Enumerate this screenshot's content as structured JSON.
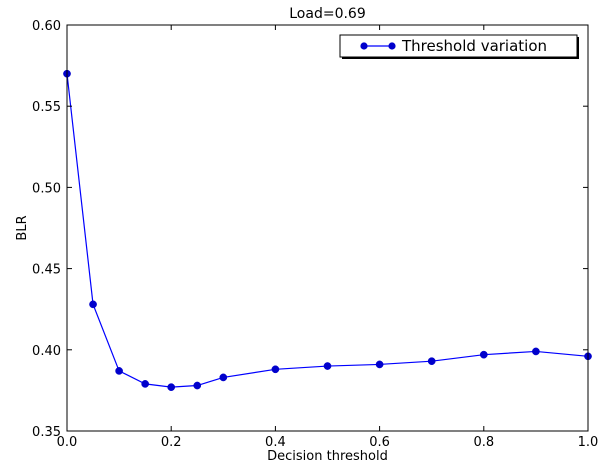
{
  "chart_data": {
    "type": "line",
    "title": "Load=0.69",
    "xlabel": "Decision threshold",
    "ylabel": "BLR",
    "xlim": [
      0.0,
      1.0
    ],
    "ylim": [
      0.35,
      0.6
    ],
    "xticks": [
      0.0,
      0.2,
      0.4,
      0.6,
      0.8,
      1.0
    ],
    "xtick_labels": [
      "0.0",
      "0.2",
      "0.4",
      "0.6",
      "0.8",
      "1.0"
    ],
    "yticks": [
      0.35,
      0.4,
      0.45,
      0.5,
      0.55,
      0.6
    ],
    "ytick_labels": [
      "0.35",
      "0.40",
      "0.45",
      "0.50",
      "0.55",
      "0.60"
    ],
    "grid": false,
    "legend_position": "top-right",
    "series": [
      {
        "name": "Threshold variation",
        "color": "#0000ff",
        "marker_color": "#0000cc",
        "x": [
          0.0,
          0.05,
          0.1,
          0.15,
          0.2,
          0.25,
          0.3,
          0.4,
          0.5,
          0.6,
          0.7,
          0.8,
          0.9,
          1.0
        ],
        "y": [
          0.57,
          0.428,
          0.387,
          0.379,
          0.377,
          0.378,
          0.383,
          0.388,
          0.39,
          0.391,
          0.393,
          0.397,
          0.399,
          0.396
        ]
      }
    ]
  }
}
